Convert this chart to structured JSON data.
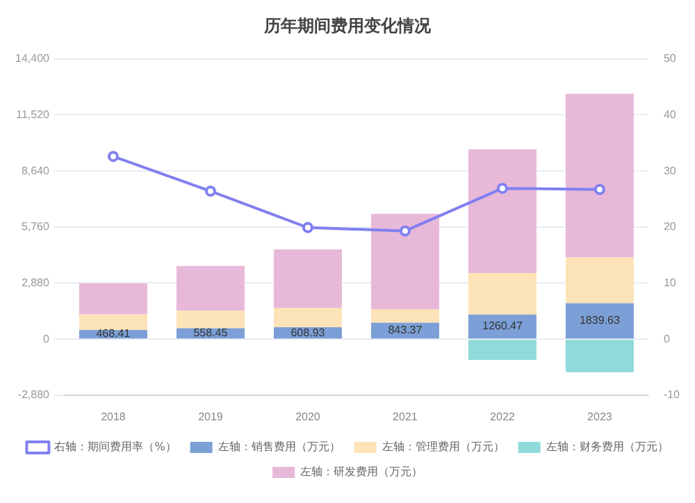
{
  "chart_data": {
    "type": "bar",
    "title": "历年期间费用变化情况",
    "categories": [
      "2018",
      "2019",
      "2020",
      "2021",
      "2022",
      "2023"
    ],
    "stacked": true,
    "series": [
      {
        "name": "左轴：销售费用（万元）",
        "color": "#7b9fd6",
        "values": [
          468.41,
          558.45,
          608.93,
          843.37,
          1260.47,
          1839.63
        ],
        "value_labels": [
          "468.41",
          "558.45",
          "608.93",
          "843.37",
          "1260.47",
          "1839.63"
        ]
      },
      {
        "name": "左轴：管理费用（万元）",
        "color": "#fde3b8",
        "values": [
          800,
          900,
          1000,
          700,
          2140,
          2360
        ]
      },
      {
        "name": "左轴：财务费用（万元）",
        "color": "#8fdada",
        "values": [
          0,
          0,
          0,
          0,
          -1070,
          -1700
        ]
      },
      {
        "name": "左轴：研发费用（万元）",
        "color": "#e8b8d9",
        "values": [
          1600,
          2300,
          3000,
          4900,
          6350,
          8410
        ]
      },
      {
        "name": "右轴：期间费用率（%）",
        "type": "line",
        "axis": "y2",
        "color": "#8080f0",
        "marker": "circle",
        "values": [
          32.6,
          26.4,
          19.9,
          19.3,
          26.9,
          26.7
        ]
      }
    ],
    "ylim": [
      -2880,
      14400
    ],
    "yticks": [
      {
        "value": -2880,
        "label": "-2,880"
      },
      0,
      {
        "value": 2880,
        "label": "2,880"
      },
      {
        "value": 5760,
        "label": "5,760"
      },
      {
        "value": 8640,
        "label": "8,640"
      },
      {
        "value": 11520,
        "label": "11,520"
      },
      {
        "value": 14400,
        "label": "14,400"
      }
    ],
    "y2lim": [
      -10,
      50
    ],
    "y2ticks": [
      -10,
      0,
      10,
      20,
      30,
      40,
      50
    ],
    "grid": "y",
    "legend": "bottom"
  }
}
